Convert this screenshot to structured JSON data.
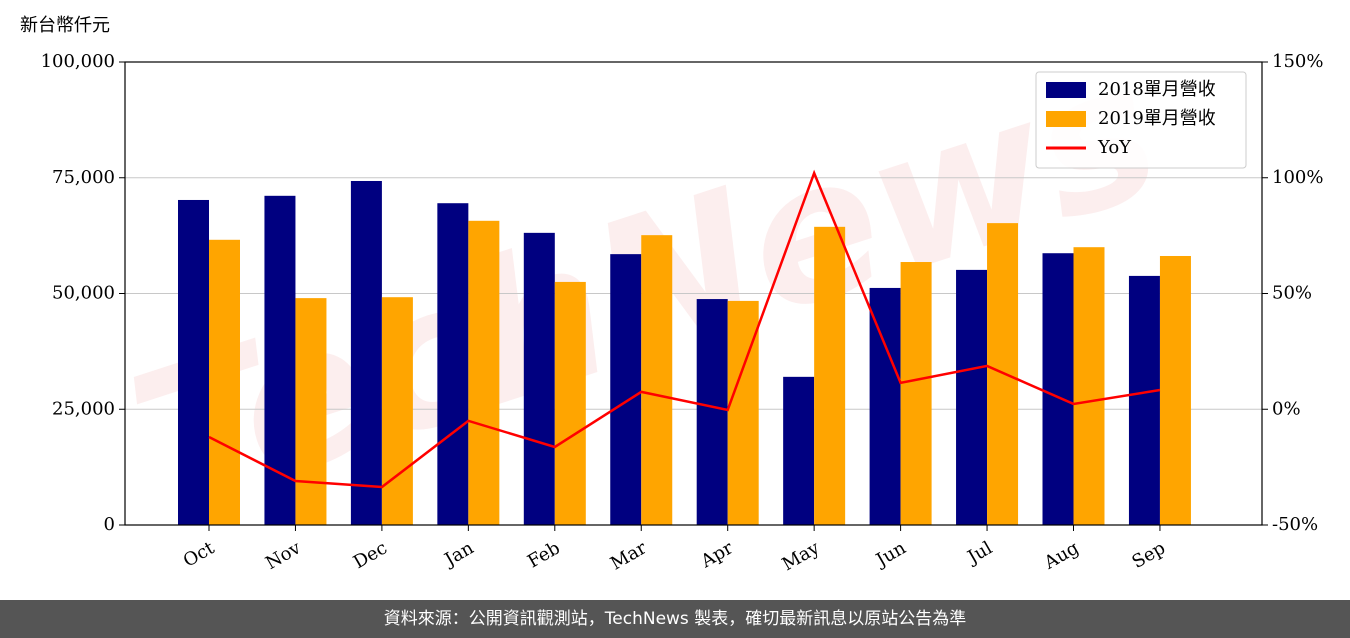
{
  "chart_data": {
    "type": "bar-line",
    "y_label": "新台幣仟元",
    "watermark": "TechNews",
    "categories": [
      "Oct",
      "Nov",
      "Dec",
      "Jan",
      "Feb",
      "Mar",
      "Apr",
      "May",
      "Jun",
      "Jul",
      "Aug",
      "Sep"
    ],
    "series": [
      {
        "name": "2018單月營收",
        "type": "bar",
        "color": "#000080",
        "values": [
          70200,
          71100,
          74300,
          69500,
          63100,
          58500,
          48800,
          32000,
          51200,
          55100,
          58700,
          53800
        ]
      },
      {
        "name": "2019單月營收",
        "type": "bar",
        "color": "#ffa500",
        "values": [
          61600,
          49000,
          49200,
          65700,
          52500,
          62600,
          48400,
          64400,
          56800,
          65200,
          60000,
          58100
        ]
      },
      {
        "name": "YoY",
        "type": "line",
        "axis": "y2",
        "color": "#ff0000",
        "values": [
          -12,
          -31,
          -33.6,
          -5,
          -16.3,
          7.5,
          -0.3,
          102,
          11.4,
          18.7,
          2.3,
          8.3
        ]
      }
    ],
    "ylim": [
      0,
      100000
    ],
    "yticks": [
      0,
      {
        "value": 25000,
        "label": "25,000"
      },
      {
        "value": 50000,
        "label": "50,000"
      },
      {
        "value": 75000,
        "label": "75,000"
      },
      {
        "value": 100000,
        "label": "100,000"
      }
    ],
    "y2lim": [
      -50,
      150
    ],
    "y2ticks": [
      {
        "value": -50,
        "label": "-50%"
      },
      {
        "value": 0,
        "label": "0%"
      },
      {
        "value": 50,
        "label": "50%"
      },
      {
        "value": 100,
        "label": "100%"
      },
      {
        "value": 150,
        "label": "150%"
      }
    ],
    "grid": true,
    "legend": "upper right"
  },
  "footer": "資料來源：公開資訊觀測站，TechNews 製表，確切最新訊息以原站公告為準"
}
